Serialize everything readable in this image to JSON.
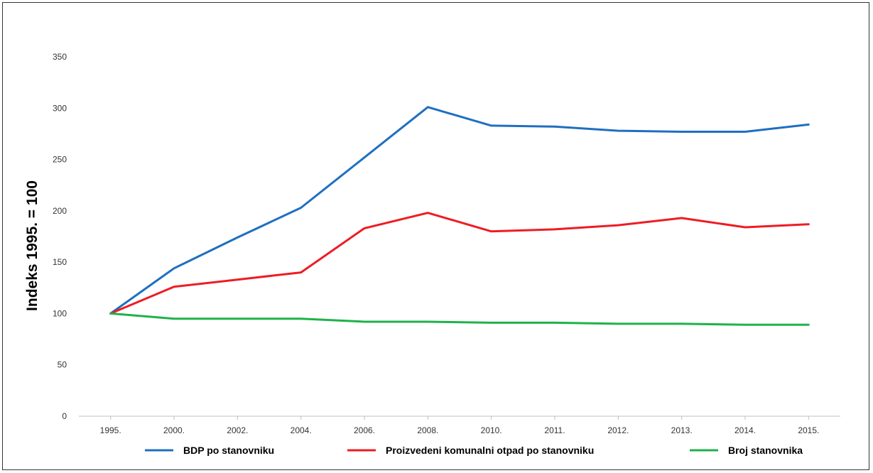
{
  "chart_data": {
    "type": "line",
    "ylabel": "Indeks 1995. = 100",
    "xlabel": "",
    "title": "",
    "categories": [
      "1995.",
      "2000.",
      "2002.",
      "2004.",
      "2006.",
      "2008.",
      "2010.",
      "2011.",
      "2012.",
      "2013.",
      "2014.",
      "2015."
    ],
    "ylim": [
      0,
      350
    ],
    "yticks": [
      0,
      50,
      100,
      150,
      200,
      250,
      300,
      350
    ],
    "grid": false,
    "legend_position": "bottom",
    "series": [
      {
        "name": "BDP po stanovniku",
        "color": "#1f6fc0",
        "values": [
          100,
          144,
          174,
          203,
          252,
          301,
          283,
          282,
          278,
          277,
          277,
          284
        ]
      },
      {
        "name": "Proizvedeni komunalni otpad po stanovniku",
        "color": "#ee1c24",
        "values": [
          100,
          126,
          133,
          140,
          183,
          198,
          180,
          182,
          186,
          193,
          184,
          187
        ]
      },
      {
        "name": "Broj stanovnika",
        "color": "#1fb24a",
        "values": [
          100,
          95,
          95,
          95,
          92,
          92,
          91,
          91,
          90,
          90,
          89,
          89
        ]
      }
    ]
  }
}
